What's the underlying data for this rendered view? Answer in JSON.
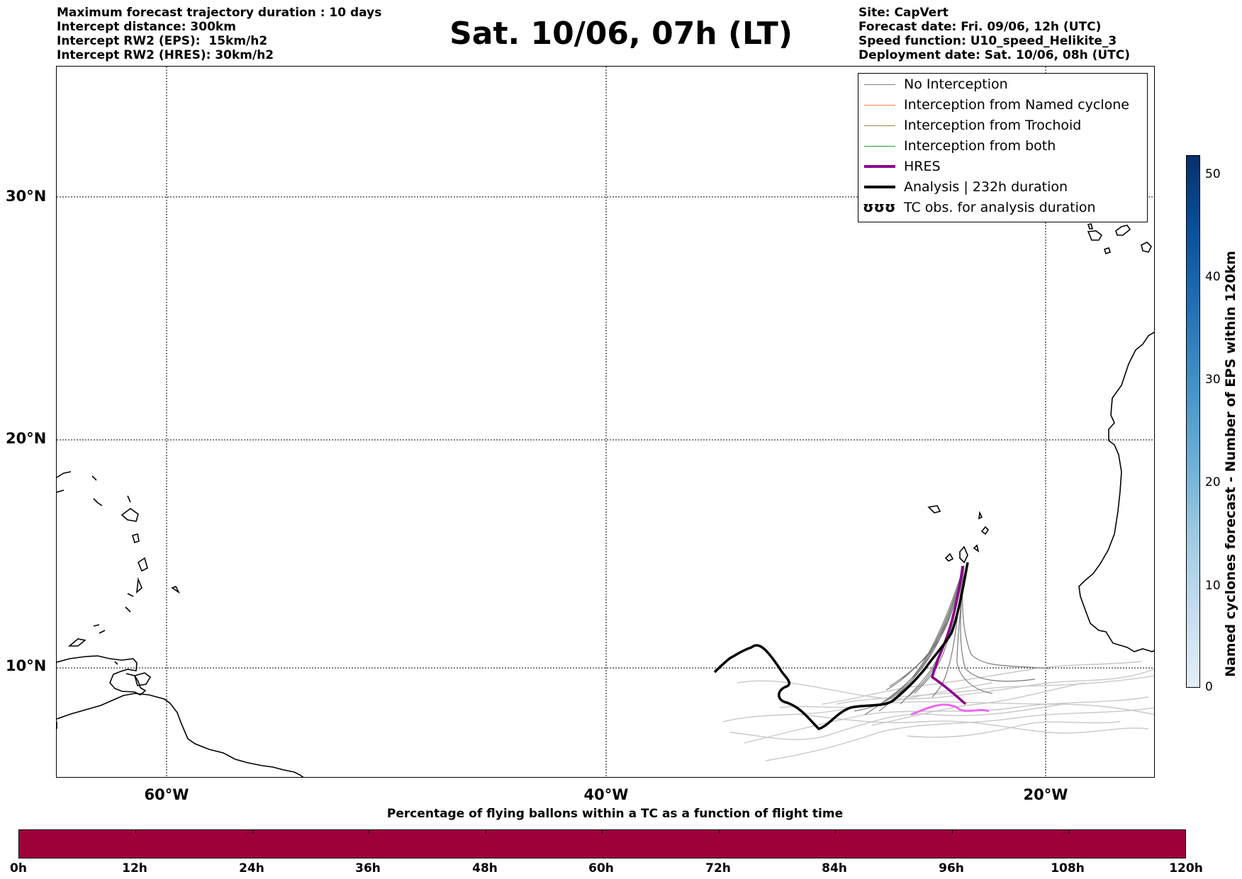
{
  "header": {
    "left_lines": [
      "Maximum forecast trajectory duration : 10 days",
      "Intercept distance: 300km",
      "Intercept RW2 (EPS):  15km/h2",
      "Intercept RW2 (HRES): 30km/h2"
    ],
    "right_lines": [
      "Site: CapVert",
      "Forecast date: Fri. 09/06, 12h (UTC)",
      "Speed function: U10_speed_Helikite_3",
      "Deployment date: Sat. 10/06, 08h (UTC)"
    ],
    "title": "Sat. 10/06, 07h (LT)"
  },
  "map": {
    "lat_labels": [
      "30°N",
      "20°N",
      "10°N"
    ],
    "lon_labels": [
      "60°W",
      "40°W",
      "20°W"
    ],
    "extent": {
      "lon_min": -65,
      "lon_max": -15,
      "lat_min": 5.5,
      "lat_max": 35.3
    }
  },
  "legend": {
    "items": [
      {
        "label": "No Interception",
        "color": "#808080",
        "style": "thin"
      },
      {
        "label": "Interception from Named cyclone",
        "color": "#ff7f50",
        "style": "thin"
      },
      {
        "label": "Interception from Trochoid",
        "color": "#9a8a3a",
        "style": "thin"
      },
      {
        "label": "Interception from both",
        "color": "#2ca02c",
        "style": "thin"
      },
      {
        "label": "HRES",
        "color": "#8b008b",
        "style": "thick"
      },
      {
        "label": "Analysis | 232h duration",
        "color": "#000000",
        "style": "thick"
      },
      {
        "label": "TC obs. for analysis duration",
        "color": "#000000",
        "style": "symbol",
        "symbol": "ʊʊʊ"
      }
    ]
  },
  "colorbar_vertical": {
    "label": "Named cyclones forecast - Number of EPS within 120km",
    "ticks": [
      "0",
      "10",
      "20",
      "30",
      "40",
      "50"
    ],
    "range": [
      0,
      52
    ]
  },
  "colorbar_horizontal": {
    "title": "Percentage of flying ballons within a TC as a function of flight time",
    "labels": [
      "0h",
      "12h",
      "24h",
      "36h",
      "48h",
      "60h",
      "72h",
      "84h",
      "96h",
      "108h",
      "120h"
    ],
    "color": "#9e003a"
  }
}
